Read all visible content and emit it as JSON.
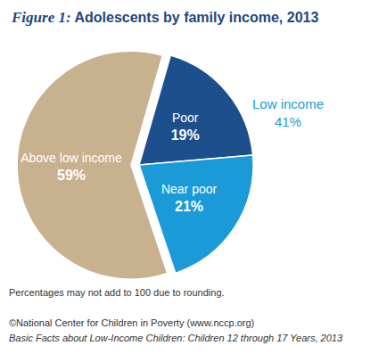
{
  "chart_data": {
    "type": "pie",
    "title": "Figure 1: Adolescents by family income, 2013",
    "categories": [
      "Poor",
      "Near poor",
      "Above low income"
    ],
    "values": [
      19,
      21,
      59
    ],
    "value_labels": [
      "19%",
      "21%",
      "59%"
    ],
    "colors": [
      "#1d4f8c",
      "#1a9bd7",
      "#c8b18f"
    ],
    "data_labels": true,
    "group": {
      "name": "Low income",
      "value": 41,
      "value_label": "41%"
    },
    "notes": [
      "Percentages may not add to 100 due to rounding."
    ],
    "source": [
      "©National Center for Children in Poverty (www.nccp.org)",
      "Basic Facts about Low-Income Children: Children 12 through 17 Years, 2013"
    ]
  }
}
